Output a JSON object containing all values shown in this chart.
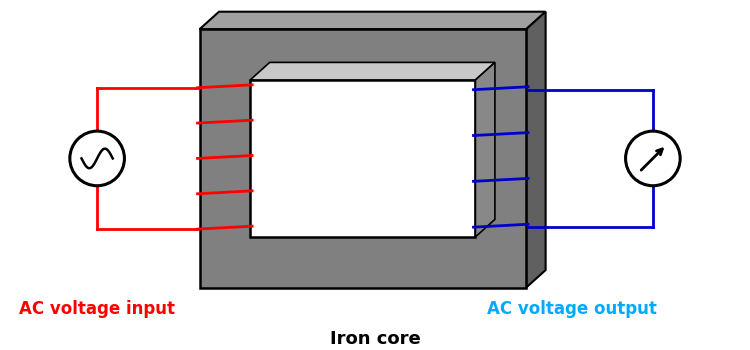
{
  "bg_color": "#ffffff",
  "core_front_color": "#808080",
  "core_top_color": "#a0a0a0",
  "core_right_color": "#606060",
  "primary_color": "#ff0000",
  "secondary_color": "#0000cc",
  "secondary_label_color": "#00aaff",
  "wire_color": "#000000",
  "title": "Iron core",
  "label_primary": "AC voltage input",
  "label_secondary": "AC voltage output",
  "title_fontsize": 13,
  "label_fontsize": 12
}
